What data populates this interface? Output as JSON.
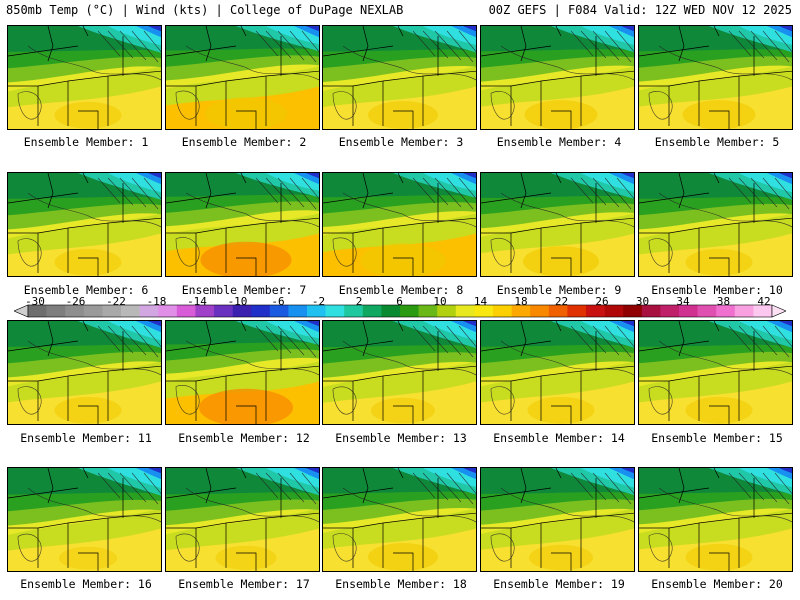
{
  "header": {
    "left": "850mb Temp (°C) | Wind (kts) | College of DuPage NEXLAB",
    "right": "00Z GEFS | F084 Valid: 12Z WED NOV 12 2025"
  },
  "colorbar": {
    "labels": [
      "-30",
      "-26",
      "-22",
      "-18",
      "-14",
      "-10",
      "-6",
      "-2",
      "2",
      "6",
      "10",
      "14",
      "18",
      "22",
      "26",
      "30",
      "34",
      "38",
      "42"
    ],
    "colors": [
      "#6e6e6e",
      "#7e7e7e",
      "#8e8e8e",
      "#9a9a9a",
      "#a8a8a8",
      "#b8b8b8",
      "#d2a6e0",
      "#e08ee8",
      "#d85cd8",
      "#a040c8",
      "#6a30c0",
      "#3c20b0",
      "#2030c8",
      "#1a5ae0",
      "#1890f0",
      "#20c0f0",
      "#30e0e0",
      "#20c8a0",
      "#10a860",
      "#0a8a30",
      "#2a9a10",
      "#6ab818",
      "#b0d010",
      "#e8e820",
      "#f8e810",
      "#fcd000",
      "#fca800",
      "#f88800",
      "#f06000",
      "#e03000",
      "#c81010",
      "#b00808",
      "#900000",
      "#a81040",
      "#c0206a",
      "#d03090",
      "#e050b0",
      "#f070d0",
      "#f8a0e0",
      "#fcc8f0"
    ]
  },
  "panels": [
    {
      "caption": "Ensemble Member: 1",
      "warm": 0.45
    },
    {
      "caption": "Ensemble Member: 2",
      "warm": 0.7
    },
    {
      "caption": "Ensemble Member: 3",
      "warm": 0.5
    },
    {
      "caption": "Ensemble Member: 4",
      "warm": 0.55
    },
    {
      "caption": "Ensemble Member: 5",
      "warm": 0.55
    },
    {
      "caption": "Ensemble Member: 6",
      "warm": 0.45
    },
    {
      "caption": "Ensemble Member: 7",
      "warm": 0.85
    },
    {
      "caption": "Ensemble Member: 8",
      "warm": 0.75
    },
    {
      "caption": "Ensemble Member: 9",
      "warm": 0.6
    },
    {
      "caption": "Ensemble Member: 10",
      "warm": 0.45
    },
    {
      "caption": "Ensemble Member: 11",
      "warm": 0.45
    },
    {
      "caption": "Ensemble Member: 12",
      "warm": 0.9
    },
    {
      "caption": "Ensemble Member: 13",
      "warm": 0.4
    },
    {
      "caption": "Ensemble Member: 14",
      "warm": 0.45
    },
    {
      "caption": "Ensemble Member: 15",
      "warm": 0.45
    },
    {
      "caption": "Ensemble Member: 16",
      "warm": 0.3
    },
    {
      "caption": "Ensemble Member: 17",
      "warm": 0.35
    },
    {
      "caption": "Ensemble Member: 18",
      "warm": 0.5
    },
    {
      "caption": "Ensemble Member: 19",
      "warm": 0.4
    },
    {
      "caption": "Ensemble Member: 20",
      "warm": 0.45
    }
  ]
}
